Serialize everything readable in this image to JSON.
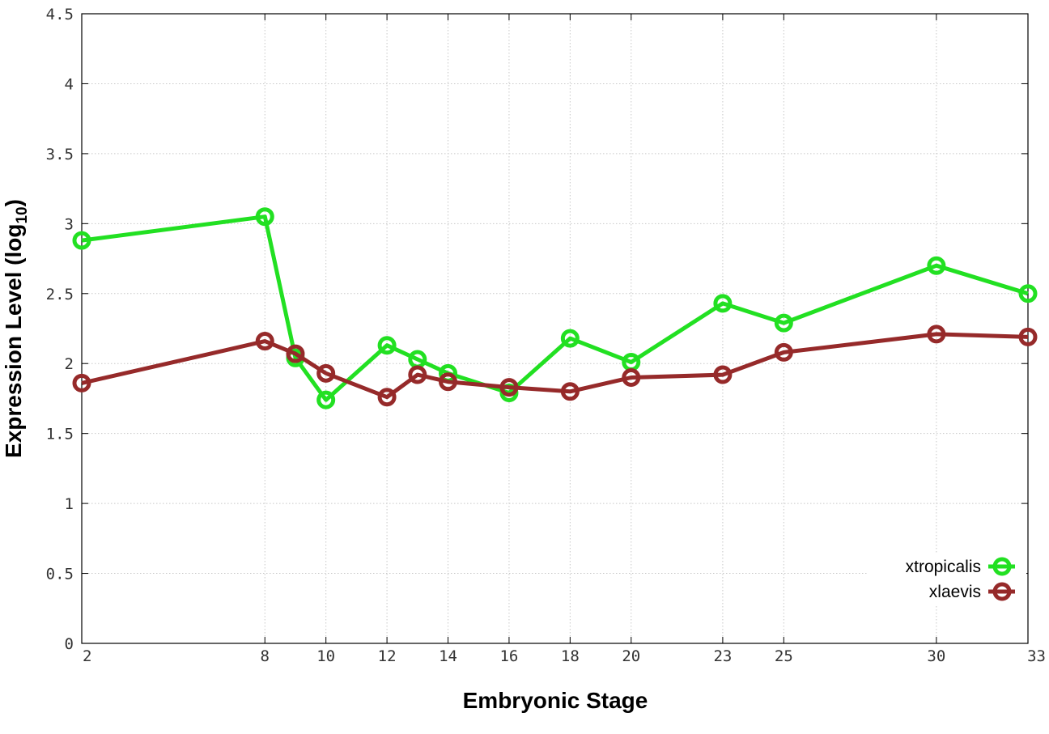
{
  "chart_data": {
    "type": "line",
    "xlabel": "Embryonic Stage",
    "ylabel_main": "Expression Level (log",
    "ylabel_sub": "10",
    "ylabel_close": ")",
    "x": [
      2,
      8,
      9,
      10,
      12,
      13,
      14,
      16,
      18,
      20,
      23,
      25,
      30,
      33
    ],
    "xticks": [
      2,
      8,
      10,
      12,
      14,
      16,
      18,
      20,
      23,
      25,
      30,
      33
    ],
    "xtick_labels": [
      "2",
      "8",
      "10",
      "12",
      "14",
      "16",
      "18",
      "20",
      "23",
      "25",
      "30",
      "33"
    ],
    "xlim": [
      2,
      33
    ],
    "yticks": [
      0,
      0.5,
      1,
      1.5,
      2,
      2.5,
      3,
      3.5,
      4,
      4.5
    ],
    "ytick_labels": [
      "0",
      "0.5",
      "1",
      "1.5",
      "2",
      "2.5",
      "3",
      "3.5",
      "4",
      "4.5"
    ],
    "ylim": [
      0,
      4.5
    ],
    "grid": true,
    "legend_position": "bottom-right",
    "series": [
      {
        "name": "xtropicalis",
        "color": "#22e022",
        "values": [
          2.88,
          3.05,
          2.04,
          1.74,
          2.13,
          2.03,
          1.93,
          1.79,
          2.18,
          2.01,
          2.43,
          2.29,
          2.7,
          2.5
        ]
      },
      {
        "name": "xlaevis",
        "color": "#962a2a",
        "values": [
          1.86,
          2.16,
          2.07,
          1.93,
          1.76,
          1.92,
          1.87,
          1.83,
          1.8,
          1.9,
          1.92,
          2.08,
          2.21,
          2.19
        ]
      }
    ]
  }
}
